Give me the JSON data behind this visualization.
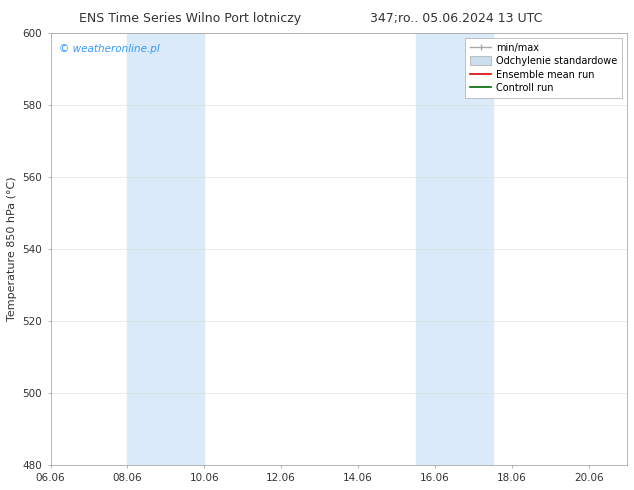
{
  "title_left": "ENS Time Series Wilno Port lotniczy",
  "title_right": "347;ro.. 05.06.2024 13 UTC",
  "ylabel": "Temperature 850 hPa (°C)",
  "ylim": [
    480,
    600
  ],
  "yticks": [
    480,
    500,
    520,
    540,
    560,
    580,
    600
  ],
  "xtick_labels": [
    "06.06",
    "08.06",
    "10.06",
    "12.06",
    "14.06",
    "16.06",
    "18.06",
    "20.06"
  ],
  "xtick_positions": [
    0,
    2,
    4,
    6,
    8,
    10,
    12,
    14
  ],
  "xlim": [
    0,
    15
  ],
  "background_color": "#ffffff",
  "plot_bg_color": "#ffffff",
  "shaded_bands": [
    {
      "x_start": 2,
      "x_end": 4,
      "color": "#daeaf8"
    },
    {
      "x_start": 9.5,
      "x_end": 11.5,
      "color": "#daeaf8"
    }
  ],
  "watermark_text": "© weatheronline.pl",
  "watermark_color": "#3399ff",
  "legend_entries": [
    {
      "label": "min/max",
      "color": "#aaaaaa",
      "style": "minmax"
    },
    {
      "label": "Odchylenie standardowe",
      "color": "#ccddee",
      "style": "bar"
    },
    {
      "label": "Ensemble mean run",
      "color": "#dd0000",
      "style": "line"
    },
    {
      "label": "Controll run",
      "color": "#006600",
      "style": "line"
    }
  ],
  "title_fontsize": 9,
  "tick_fontsize": 7.5,
  "ylabel_fontsize": 8,
  "legend_fontsize": 7,
  "watermark_fontsize": 7.5
}
